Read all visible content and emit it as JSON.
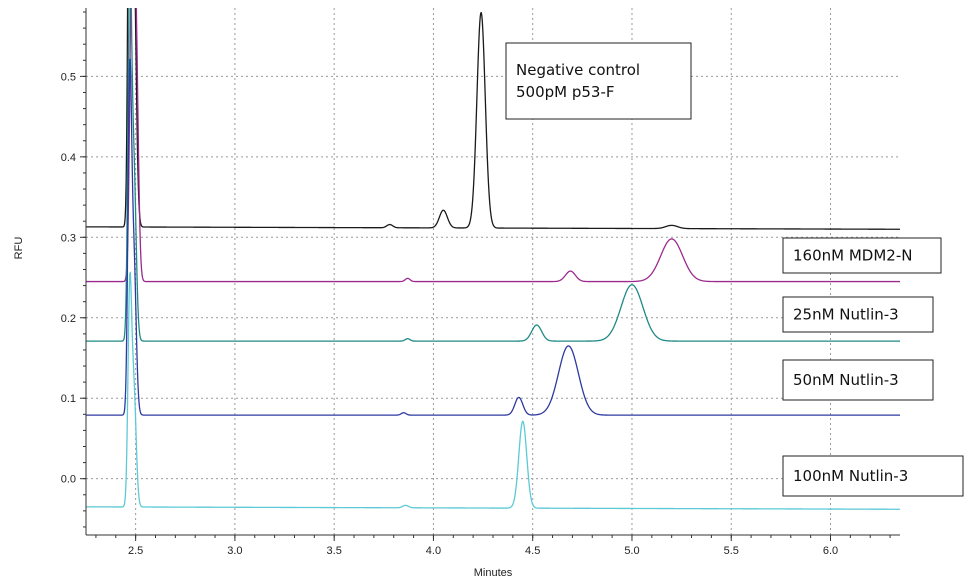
{
  "chart_data": {
    "type": "line",
    "xlabel": "Minutes",
    "ylabel": "RFU",
    "xlim": [
      2.25,
      6.35
    ],
    "ylim": [
      -0.07,
      0.585
    ],
    "xticks": [
      "2.5",
      "3.0",
      "3.5",
      "4.0",
      "4.5",
      "5.0",
      "5.5",
      "6.0"
    ],
    "yticks": [
      "0.0",
      "0.1",
      "0.2",
      "0.3",
      "0.4",
      "0.5"
    ],
    "grid": true,
    "annotations": [
      {
        "lines": [
          "Negative control",
          "500pM p53-F"
        ]
      },
      {
        "lines": [
          "160nM MDM2-N"
        ]
      },
      {
        "lines": [
          "25nM Nutlin-3"
        ]
      },
      {
        "lines": [
          "50nM Nutlin-3"
        ]
      },
      {
        "lines": [
          "100nM Nutlin-3"
        ]
      }
    ],
    "series": [
      {
        "color": "#1a1a1a",
        "baseline_start": 0.313,
        "baseline_end": 0.31,
        "peaks": [
          {
            "x": 2.47,
            "height": 0.62,
            "width": 0.008
          },
          {
            "x": 2.49,
            "height": 0.35,
            "width": 0.012
          },
          {
            "x": 3.78,
            "height": 0.004,
            "width": 0.015
          },
          {
            "x": 4.05,
            "height": 0.022,
            "width": 0.02
          },
          {
            "x": 4.24,
            "height": 0.268,
            "width": 0.021
          },
          {
            "x": 5.2,
            "height": 0.004,
            "width": 0.03
          }
        ]
      },
      {
        "color": "#9b2a8e",
        "baseline_start": 0.245,
        "baseline_end": 0.245,
        "peaks": [
          {
            "x": 2.48,
            "height": 0.35,
            "width": 0.01
          },
          {
            "x": 2.5,
            "height": 0.33,
            "width": 0.012
          },
          {
            "x": 3.87,
            "height": 0.004,
            "width": 0.012
          },
          {
            "x": 4.69,
            "height": 0.013,
            "width": 0.025
          },
          {
            "x": 5.2,
            "height": 0.053,
            "width": 0.055
          }
        ]
      },
      {
        "color": "#1f8a85",
        "baseline_start": 0.171,
        "baseline_end": 0.171,
        "peaks": [
          {
            "x": 2.47,
            "height": 0.42,
            "width": 0.009
          },
          {
            "x": 2.49,
            "height": 0.22,
            "width": 0.012
          },
          {
            "x": 3.87,
            "height": 0.003,
            "width": 0.012
          },
          {
            "x": 4.52,
            "height": 0.02,
            "width": 0.025
          },
          {
            "x": 5.0,
            "height": 0.07,
            "width": 0.055
          }
        ]
      },
      {
        "color": "#2e3aa1",
        "baseline_start": 0.079,
        "baseline_end": 0.079,
        "peaks": [
          {
            "x": 2.47,
            "height": 0.39,
            "width": 0.009
          },
          {
            "x": 2.49,
            "height": 0.2,
            "width": 0.012
          },
          {
            "x": 3.85,
            "height": 0.003,
            "width": 0.012
          },
          {
            "x": 4.43,
            "height": 0.022,
            "width": 0.02
          },
          {
            "x": 4.68,
            "height": 0.086,
            "width": 0.05
          }
        ]
      },
      {
        "color": "#5bcad6",
        "baseline_start": -0.035,
        "baseline_end": -0.038,
        "peaks": [
          {
            "x": 2.47,
            "height": 0.25,
            "width": 0.009
          },
          {
            "x": 2.49,
            "height": 0.15,
            "width": 0.012
          },
          {
            "x": 3.86,
            "height": 0.003,
            "width": 0.015
          },
          {
            "x": 4.45,
            "height": 0.108,
            "width": 0.02
          }
        ]
      }
    ]
  }
}
